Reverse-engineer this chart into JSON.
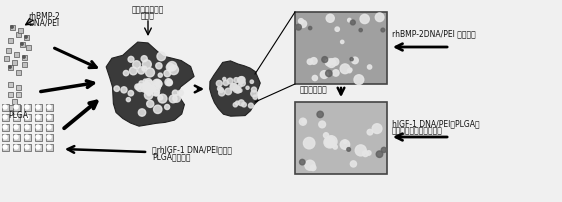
{
  "bg_color": "#f0f0f0",
  "label_top_left_line1": "rhBMP-2",
  "label_top_left_line2": "DNA/PEI",
  "label_plga": "PLGA",
  "label_scaffold_top_line1": "三维多孔组织工",
  "label_scaffold_top_line2": "程材料",
  "label_first_release": "rhBMP-2DNA/PEI 率先释放",
  "label_degradation": "材料逐渐降解",
  "label_second_release_line1": "hIGF-1 DNA/PEI和PLGA缓",
  "label_second_release_line2": "释微球的溶解而延迟释放",
  "label_microsphere_line1": "含rhIGF-1 DNA/PEI颗粒的",
  "label_microsphere_line2": "PLGA缓释微球",
  "scaffold_color": "#3a3a3a",
  "scaffold_pore_color": "#ffffff",
  "square_bg_color": "#a8a8a8",
  "square_dot_white": "#e8e8e8",
  "square_dot_dark": "#606060",
  "arrow_color": "#111111",
  "text_color": "#111111"
}
